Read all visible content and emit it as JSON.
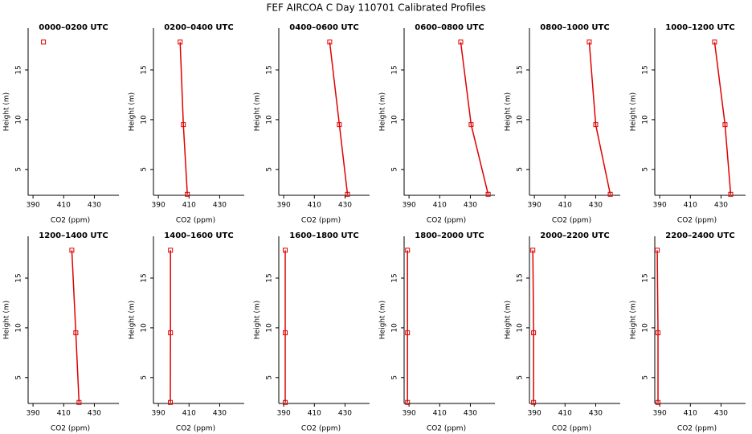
{
  "title": "FEF AIRCOA C  Day 110701  Calibrated Profiles",
  "chart_data": [
    {
      "type": "line",
      "title": "0000–0200 UTC",
      "x_label": "CO2 (ppm)",
      "y_label": "Height (m)",
      "color": "#e00000",
      "x": [
        396.8,
        null,
        null
      ],
      "values": [
        17.8,
        9.5,
        2.5
      ],
      "xlim": [
        386.8,
        446
      ],
      "ylim": [
        2.4,
        19.2
      ],
      "xticks": [
        390,
        410,
        430
      ],
      "yticks": [
        5,
        10,
        15
      ]
    },
    {
      "type": "line",
      "title": "0200–0400 UTC",
      "x_label": "CO2 (ppm)",
      "y_label": "Height (m)",
      "color": "#e00000",
      "x": [
        404.2,
        406.3,
        408.9
      ],
      "values": [
        17.8,
        9.5,
        2.5
      ],
      "xlim": [
        386.8,
        446
      ],
      "ylim": [
        2.4,
        19.2
      ],
      "xticks": [
        390,
        410,
        430
      ],
      "yticks": [
        5,
        10,
        15
      ]
    },
    {
      "type": "line",
      "title": "0400–0600 UTC",
      "x_label": "CO2 (ppm)",
      "y_label": "Height (m)",
      "color": "#e00000",
      "x": [
        420,
        426.3,
        431.6
      ],
      "values": [
        17.8,
        9.5,
        2.5
      ],
      "xlim": [
        386.8,
        446
      ],
      "ylim": [
        2.4,
        19.2
      ],
      "xticks": [
        390,
        410,
        430
      ],
      "yticks": [
        5,
        10,
        15
      ]
    },
    {
      "type": "line",
      "title": "0600–0800 UTC",
      "x_label": "CO2 (ppm)",
      "y_label": "Height (m)",
      "color": "#e00000",
      "x": [
        423.7,
        430.5,
        441.6
      ],
      "values": [
        17.8,
        9.5,
        2.5
      ],
      "xlim": [
        386.8,
        446
      ],
      "ylim": [
        2.4,
        19.2
      ],
      "xticks": [
        390,
        410,
        430
      ],
      "yticks": [
        5,
        10,
        15
      ]
    },
    {
      "type": "line",
      "title": "0800–1000 UTC",
      "x_label": "CO2 (ppm)",
      "y_label": "Height (m)",
      "color": "#e00000",
      "x": [
        425.8,
        430,
        439.5
      ],
      "values": [
        17.8,
        9.5,
        2.5
      ],
      "xlim": [
        386.8,
        446
      ],
      "ylim": [
        2.4,
        19.2
      ],
      "xticks": [
        390,
        410,
        430
      ],
      "yticks": [
        5,
        10,
        15
      ]
    },
    {
      "type": "line",
      "title": "1000–1200 UTC",
      "x_label": "CO2 (ppm)",
      "y_label": "Height (m)",
      "color": "#e00000",
      "x": [
        425.8,
        432.6,
        436.3
      ],
      "values": [
        17.8,
        9.5,
        2.5
      ],
      "xlim": [
        386.8,
        446
      ],
      "ylim": [
        2.4,
        19.2
      ],
      "xticks": [
        390,
        410,
        430
      ],
      "yticks": [
        5,
        10,
        15
      ]
    },
    {
      "type": "line",
      "title": "1200–1400 UTC",
      "x_label": "CO2 (ppm)",
      "y_label": "Height (m)",
      "color": "#e00000",
      "x": [
        415.3,
        417.9,
        420
      ],
      "values": [
        17.8,
        9.5,
        2.5
      ],
      "xlim": [
        386.8,
        446
      ],
      "ylim": [
        2.4,
        19.2
      ],
      "xticks": [
        390,
        410,
        430
      ],
      "yticks": [
        5,
        10,
        15
      ]
    },
    {
      "type": "line",
      "title": "1400–1600 UTC",
      "x_label": "CO2 (ppm)",
      "y_label": "Height (m)",
      "color": "#e00000",
      "x": [
        397.9,
        397.9,
        397.8
      ],
      "values": [
        17.8,
        9.5,
        2.5
      ],
      "xlim": [
        386.8,
        446
      ],
      "ylim": [
        2.4,
        19.2
      ],
      "xticks": [
        390,
        410,
        430
      ],
      "yticks": [
        5,
        10,
        15
      ]
    },
    {
      "type": "line",
      "title": "1600–1800 UTC",
      "x_label": "CO2 (ppm)",
      "y_label": "Height (m)",
      "color": "#e00000",
      "x": [
        391,
        391,
        391
      ],
      "values": [
        17.8,
        9.5,
        2.5
      ],
      "xlim": [
        386.8,
        446
      ],
      "ylim": [
        2.4,
        19.2
      ],
      "xticks": [
        390,
        410,
        430
      ],
      "yticks": [
        5,
        10,
        15
      ]
    },
    {
      "type": "line",
      "title": "1800–2000 UTC",
      "x_label": "CO2 (ppm)",
      "y_label": "Height (m)",
      "color": "#e00000",
      "x": [
        389,
        389,
        389
      ],
      "values": [
        17.8,
        9.5,
        2.5
      ],
      "xlim": [
        386.8,
        446
      ],
      "ylim": [
        2.4,
        19.2
      ],
      "xticks": [
        390,
        410,
        430
      ],
      "yticks": [
        5,
        10,
        15
      ]
    },
    {
      "type": "line",
      "title": "2000–2200 UTC",
      "x_label": "CO2 (ppm)",
      "y_label": "Height (m)",
      "color": "#e00000",
      "x": [
        389,
        389.5,
        389.5
      ],
      "values": [
        17.8,
        9.5,
        2.5
      ],
      "xlim": [
        386.8,
        446
      ],
      "ylim": [
        2.4,
        19.2
      ],
      "xticks": [
        390,
        410,
        430
      ],
      "yticks": [
        5,
        10,
        15
      ]
    },
    {
      "type": "line",
      "title": "2200–2400 UTC",
      "x_label": "CO2 (ppm)",
      "y_label": "Height (m)",
      "color": "#e00000",
      "x": [
        388.4,
        388.9,
        388.9
      ],
      "values": [
        17.8,
        9.5,
        2.5
      ],
      "xlim": [
        386.8,
        446
      ],
      "ylim": [
        2.4,
        19.2
      ],
      "xticks": [
        390,
        410,
        430
      ],
      "yticks": [
        5,
        10,
        15
      ]
    }
  ]
}
